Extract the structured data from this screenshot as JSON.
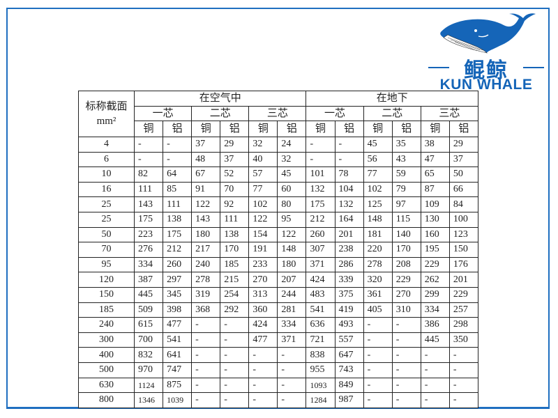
{
  "brand": {
    "name_cn": "鲲鲸",
    "name_en": "KUN WHALE",
    "color": "#1565b8"
  },
  "table": {
    "corner_label": "标称截面",
    "corner_unit": "mm²",
    "groups": [
      "在空气中",
      "在地下"
    ],
    "cores": [
      "一芯",
      "二芯",
      "三芯",
      "一芯",
      "二芯",
      "三芯"
    ],
    "materials": [
      "铜",
      "铝",
      "铜",
      "铝",
      "铜",
      "铝",
      "铜",
      "铝",
      "铜",
      "铝",
      "铜",
      "铝"
    ],
    "rows": [
      {
        "size": "4",
        "values": [
          "-",
          "-",
          "37",
          "29",
          "32",
          "24",
          "-",
          "-",
          "45",
          "35",
          "38",
          "29"
        ]
      },
      {
        "size": "6",
        "values": [
          "-",
          "-",
          "48",
          "37",
          "40",
          "32",
          "-",
          "-",
          "56",
          "43",
          "47",
          "37"
        ]
      },
      {
        "size": "10",
        "values": [
          "82",
          "64",
          "67",
          "52",
          "57",
          "45",
          "101",
          "78",
          "77",
          "59",
          "65",
          "50"
        ]
      },
      {
        "size": "16",
        "values": [
          "111",
          "85",
          "91",
          "70",
          "77",
          "60",
          "132",
          "104",
          "102",
          "79",
          "87",
          "66"
        ]
      },
      {
        "size": "25",
        "values": [
          "143",
          "111",
          "122",
          "92",
          "102",
          "80",
          "175",
          "132",
          "125",
          "97",
          "109",
          "84"
        ]
      },
      {
        "size": "25",
        "values": [
          "175",
          "138",
          "143",
          "111",
          "122",
          "95",
          "212",
          "164",
          "148",
          "115",
          "130",
          "100"
        ]
      },
      {
        "size": "50",
        "values": [
          "223",
          "175",
          "180",
          "138",
          "154",
          "122",
          "260",
          "201",
          "181",
          "140",
          "160",
          "123"
        ]
      },
      {
        "size": "70",
        "values": [
          "276",
          "212",
          "217",
          "170",
          "191",
          "148",
          "307",
          "238",
          "220",
          "170",
          "195",
          "150"
        ]
      },
      {
        "size": "95",
        "values": [
          "334",
          "260",
          "240",
          "185",
          "233",
          "180",
          "371",
          "286",
          "278",
          "208",
          "229",
          "176"
        ]
      },
      {
        "size": "120",
        "values": [
          "387",
          "297",
          "278",
          "215",
          "270",
          "207",
          "424",
          "339",
          "320",
          "229",
          "262",
          "201"
        ]
      },
      {
        "size": "150",
        "values": [
          "445",
          "345",
          "319",
          "254",
          "313",
          "244",
          "483",
          "375",
          "361",
          "270",
          "299",
          "229"
        ]
      },
      {
        "size": "185",
        "values": [
          "509",
          "398",
          "368",
          "292",
          "360",
          "281",
          "541",
          "419",
          "405",
          "310",
          "334",
          "257"
        ]
      },
      {
        "size": "240",
        "values": [
          "615",
          "477",
          "-",
          "-",
          "424",
          "334",
          "636",
          "493",
          "-",
          "-",
          "386",
          "298"
        ]
      },
      {
        "size": "300",
        "values": [
          "700",
          "541",
          "-",
          "-",
          "477",
          "371",
          "721",
          "557",
          "-",
          "-",
          "445",
          "350"
        ]
      },
      {
        "size": "400",
        "values": [
          "832",
          "641",
          "-",
          "-",
          "-",
          "-",
          "838",
          "647",
          "-",
          "-",
          "-",
          "-"
        ]
      },
      {
        "size": "500",
        "values": [
          "970",
          "747",
          "-",
          "-",
          "-",
          "-",
          "955",
          "743",
          "-",
          "-",
          "-",
          "-"
        ]
      },
      {
        "size": "630",
        "values": [
          "1124",
          "875",
          "-",
          "-",
          "-",
          "-",
          "1093",
          "849",
          "-",
          "-",
          "-",
          "-"
        ]
      },
      {
        "size": "800",
        "values": [
          "1346",
          "1039",
          "-",
          "-",
          "-",
          "-",
          "1284",
          "987",
          "-",
          "-",
          "-",
          "-"
        ]
      }
    ]
  }
}
